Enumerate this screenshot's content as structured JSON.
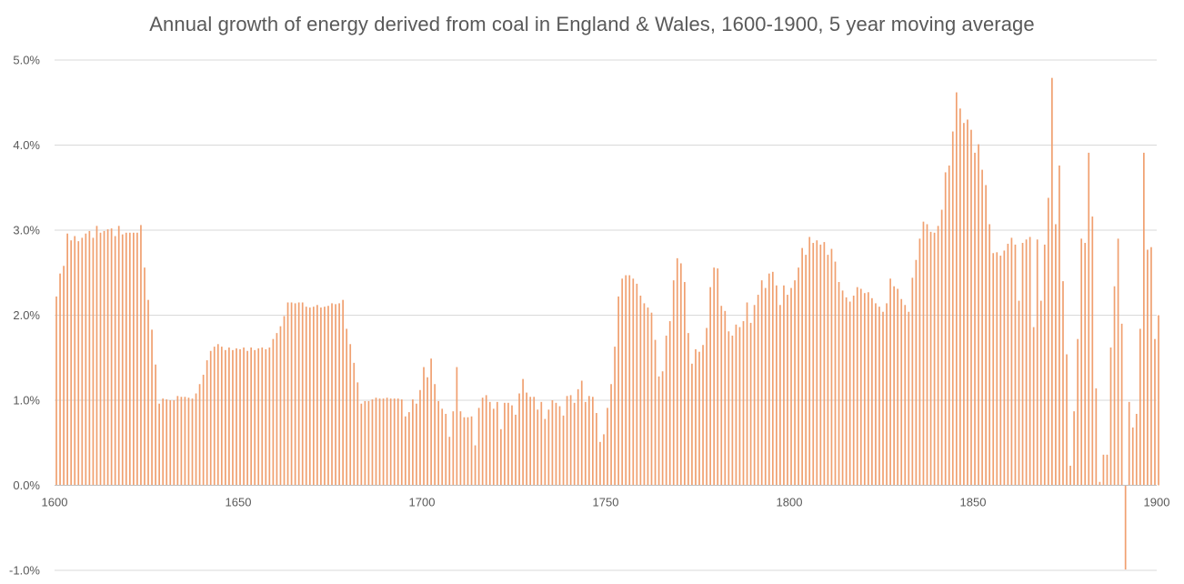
{
  "chart_data": {
    "type": "bar",
    "title": "Annual growth of energy derived from coal in England & Wales, 1600-1900, 5 year moving average",
    "xlabel": "",
    "ylabel": "",
    "x_ticks": [
      "1600",
      "1650",
      "1700",
      "1750",
      "1800",
      "1850",
      "1900"
    ],
    "y_ticks": [
      "5.0%",
      "4.0%",
      "3.0%",
      "2.0%",
      "1.0%",
      "0.0%",
      "-1.0%"
    ],
    "xlim": [
      1600,
      1900
    ],
    "ylim": [
      -1.0,
      5.0
    ],
    "y_unit": "%",
    "grid": true,
    "bar_color": "#F0A070",
    "series": [
      {
        "name": "",
        "years_start": 1600,
        "values": [
          2.22,
          2.49,
          2.58,
          2.96,
          2.88,
          2.93,
          2.87,
          2.91,
          2.96,
          2.99,
          2.91,
          3.05,
          2.97,
          2.99,
          3.01,
          3.02,
          2.93,
          3.05,
          2.95,
          2.97,
          2.97,
          2.97,
          2.97,
          3.06,
          2.56,
          2.18,
          1.83,
          1.42,
          0.96,
          1.02,
          1.01,
          1.0,
          1.0,
          1.05,
          1.04,
          1.04,
          1.03,
          1.02,
          1.08,
          1.19,
          1.3,
          1.47,
          1.58,
          1.63,
          1.66,
          1.63,
          1.59,
          1.62,
          1.59,
          1.61,
          1.6,
          1.62,
          1.58,
          1.62,
          1.59,
          1.61,
          1.62,
          1.6,
          1.62,
          1.72,
          1.79,
          1.87,
          1.99,
          2.15,
          2.15,
          2.14,
          2.15,
          2.15,
          2.1,
          2.09,
          2.1,
          2.12,
          2.09,
          2.1,
          2.11,
          2.14,
          2.13,
          2.14,
          2.18,
          1.84,
          1.66,
          1.44,
          1.21,
          0.96,
          0.99,
          0.99,
          1.01,
          1.03,
          1.02,
          1.02,
          1.03,
          1.02,
          1.02,
          1.02,
          1.01,
          0.81,
          0.86,
          1.01,
          0.96,
          1.12,
          1.39,
          1.27,
          1.49,
          1.19,
          0.99,
          0.9,
          0.84,
          0.57,
          0.87,
          1.39,
          0.87,
          0.8,
          0.8,
          0.81,
          0.47,
          0.91,
          1.03,
          1.06,
          0.98,
          0.9,
          0.98,
          0.66,
          0.97,
          0.97,
          0.94,
          0.83,
          1.08,
          1.25,
          1.09,
          1.04,
          1.04,
          0.89,
          0.98,
          0.78,
          0.89,
          1.0,
          0.97,
          0.93,
          0.82,
          1.05,
          1.06,
          0.97,
          1.13,
          1.23,
          0.98,
          1.05,
          1.04,
          0.85,
          0.51,
          0.6,
          0.91,
          1.19,
          1.63,
          2.22,
          2.43,
          2.47,
          2.47,
          2.43,
          2.37,
          2.23,
          2.14,
          2.09,
          2.03,
          1.71,
          1.28,
          1.34,
          1.76,
          1.93,
          2.41,
          2.67,
          2.61,
          2.39,
          1.79,
          1.43,
          1.6,
          1.57,
          1.65,
          1.85,
          2.33,
          2.56,
          2.55,
          2.11,
          2.05,
          1.81,
          1.76,
          1.89,
          1.86,
          1.93,
          2.15,
          1.91,
          2.12,
          2.24,
          2.41,
          2.32,
          2.49,
          2.51,
          2.35,
          2.12,
          2.35,
          2.24,
          2.32,
          2.41,
          2.56,
          2.79,
          2.71,
          2.92,
          2.85,
          2.88,
          2.83,
          2.86,
          2.71,
          2.78,
          2.63,
          2.39,
          2.29,
          2.21,
          2.16,
          2.23,
          2.33,
          2.31,
          2.26,
          2.27,
          2.2,
          2.14,
          2.1,
          2.04,
          2.14,
          2.43,
          2.34,
          2.31,
          2.19,
          2.12,
          2.04,
          2.44,
          2.65,
          2.9,
          3.1,
          3.07,
          2.98,
          2.97,
          3.05,
          3.24,
          3.68,
          3.76,
          4.16,
          4.62,
          4.43,
          4.26,
          4.3,
          4.18,
          3.91,
          4.01,
          3.71,
          3.53,
          3.07,
          2.73,
          2.74,
          2.7,
          2.76,
          2.84,
          2.91,
          2.83,
          2.17,
          2.85,
          2.89,
          2.92,
          1.86,
          2.89,
          2.17,
          2.83,
          3.38,
          4.79,
          3.07,
          3.76,
          2.4,
          1.54,
          0.23,
          0.87,
          1.72,
          2.9,
          2.85,
          3.91,
          3.16,
          1.14,
          0.04,
          0.36,
          0.36,
          1.62,
          2.34,
          2.9,
          1.9,
          -0.99,
          0.98,
          0.68,
          0.84,
          1.84,
          3.91,
          2.77,
          2.8,
          1.72,
          2.0
        ]
      }
    ]
  }
}
